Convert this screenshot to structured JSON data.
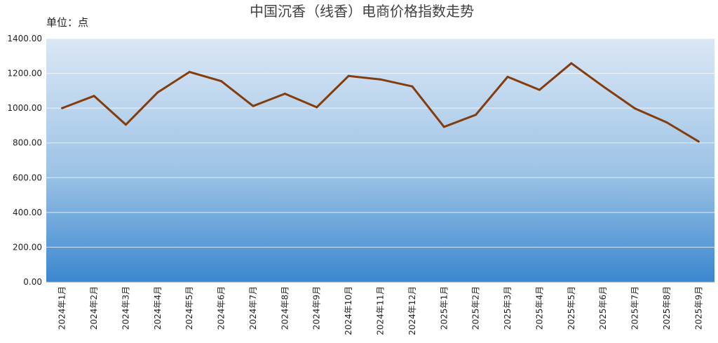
{
  "chart_data": {
    "type": "line",
    "title": "中国沉香（线香）电商价格指数走势",
    "unit_label": "单位：点",
    "categories": [
      "2024年1月",
      "2024年2月",
      "2024年3月",
      "2024年4月",
      "2024年5月",
      "2024年6月",
      "2024年7月",
      "2024年8月",
      "2024年9月",
      "2024年10月",
      "2024年11月",
      "2024年12月",
      "2025年1月",
      "2025年2月",
      "2025年3月",
      "2025年4月",
      "2025年5月",
      "2025年6月",
      "2025年7月",
      "2025年8月",
      "2025年9月"
    ],
    "series": [
      {
        "values": [
          1000,
          1070,
          905,
          1090,
          1208,
          1155,
          1012,
          1083,
          1005,
          1185,
          1165,
          1125,
          892,
          962,
          1180,
          1105,
          1258,
          1125,
          998,
          918,
          808
        ]
      }
    ],
    "yticks": [
      "0.00",
      "200.00",
      "400.00",
      "600.00",
      "800.00",
      "1000.00",
      "1200.00",
      "1400.00"
    ],
    "ylim": [
      0,
      1400
    ],
    "grid": true,
    "line_color": "#843C0C",
    "background_gradient": [
      "#DAE7F5",
      "#3B87CF"
    ]
  }
}
